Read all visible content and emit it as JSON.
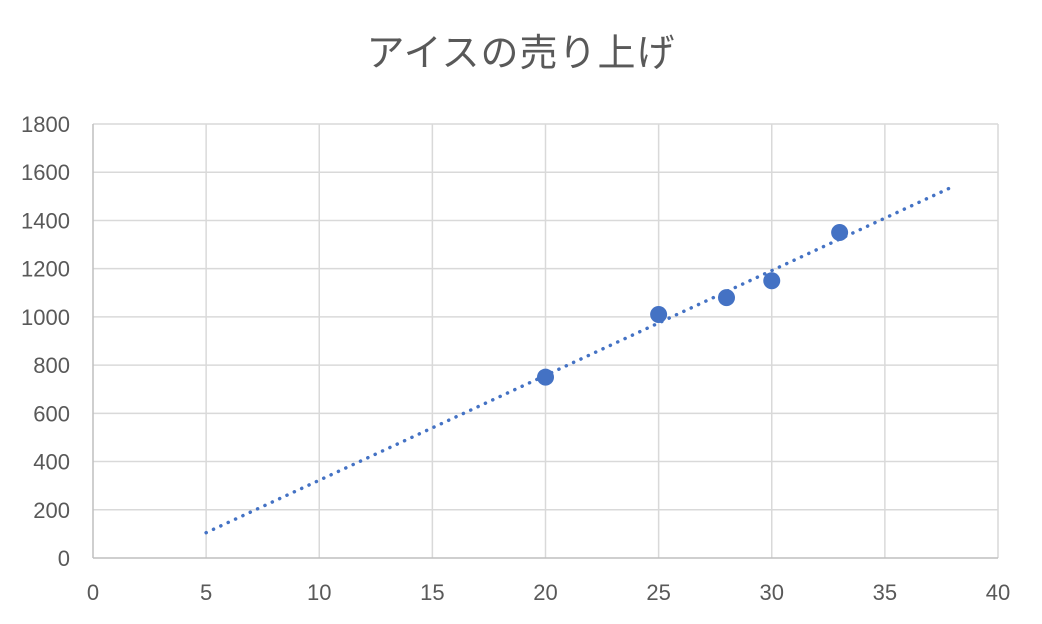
{
  "chart_data": {
    "type": "scatter",
    "title": "アイスの売り上げ",
    "xlabel": "",
    "ylabel": "",
    "xlim": [
      0,
      40
    ],
    "ylim": [
      0,
      1800
    ],
    "x_ticks": [
      0,
      5,
      10,
      15,
      20,
      25,
      30,
      35,
      40
    ],
    "y_ticks": [
      0,
      200,
      400,
      600,
      800,
      1000,
      1200,
      1400,
      1600,
      1800
    ],
    "grid": true,
    "legend": "none",
    "series": [
      {
        "color": "#4472C4",
        "points": [
          {
            "x": 20,
            "y": 750
          },
          {
            "x": 25,
            "y": 1010
          },
          {
            "x": 28,
            "y": 1080
          },
          {
            "x": 30,
            "y": 1150
          },
          {
            "x": 33,
            "y": 1350
          }
        ]
      }
    ],
    "trendline": {
      "type": "linear",
      "style": "dotted",
      "color": "#4472C4",
      "x_start": 5,
      "y_start": 105,
      "x_end": 38,
      "y_end": 1540
    },
    "colors": {
      "marker": "#4472C4",
      "grid": "#D9D9D9",
      "text": "#595959",
      "axis": "#BFBFBF"
    }
  }
}
